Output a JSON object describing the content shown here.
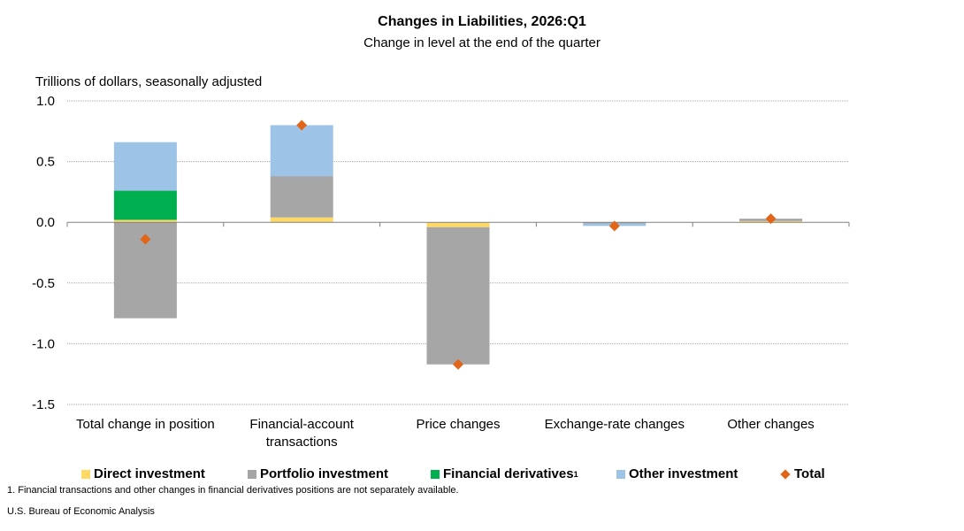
{
  "header": {
    "title": "Changes in Liabilities, 2026:Q1",
    "subtitle": "Change in level at the end of the quarter",
    "unit_label": "Trillions of dollars, seasonally adjusted"
  },
  "footnote": "1. Financial transactions and other changes in financial derivatives positions are not separately available.",
  "source": "U.S. Bureau of Economic Analysis",
  "legend": {
    "direct": "Direct investment",
    "portfolio": "Portfolio investment",
    "derivatives": "Financial derivatives",
    "derivatives_sup": "1",
    "other": "Other investment",
    "total": "Total"
  },
  "colors": {
    "direct": "#ffd966",
    "portfolio": "#a6a6a6",
    "derivatives": "#00b050",
    "other": "#9dc3e6",
    "total": "#e2661a",
    "grid": "#a6a6a6"
  },
  "chart_data": {
    "type": "bar",
    "stacked": true,
    "categories": [
      [
        "Total change in position"
      ],
      [
        "Financial-account",
        "transactions"
      ],
      [
        "Price changes"
      ],
      [
        "Exchange-rate changes"
      ],
      [
        "Other changes"
      ]
    ],
    "series": [
      {
        "name": "Direct investment",
        "key": "direct",
        "values": [
          0.02,
          0.04,
          -0.04,
          0.0,
          0.01
        ]
      },
      {
        "name": "Portfolio investment",
        "key": "portfolio",
        "values": [
          -0.79,
          0.34,
          -1.13,
          -0.01,
          0.02
        ]
      },
      {
        "name": "Financial derivatives",
        "key": "derivatives",
        "values": [
          0.24,
          0.0,
          0.0,
          0.0,
          0.0
        ]
      },
      {
        "name": "Other investment",
        "key": "other",
        "values": [
          0.4,
          0.42,
          0.0,
          -0.02,
          0.0
        ]
      }
    ],
    "total": {
      "name": "Total",
      "values": [
        -0.14,
        0.8,
        -1.17,
        -0.03,
        0.03
      ]
    },
    "ylim": [
      -1.5,
      1.0
    ],
    "yticks": [
      "1.0",
      "0.5",
      "0.0",
      "-0.5",
      "-1.0",
      "-1.5"
    ],
    "ytick_values": [
      1.0,
      0.5,
      0.0,
      -0.5,
      -1.0,
      -1.5
    ],
    "grid": true,
    "legend_position": "bottom"
  }
}
